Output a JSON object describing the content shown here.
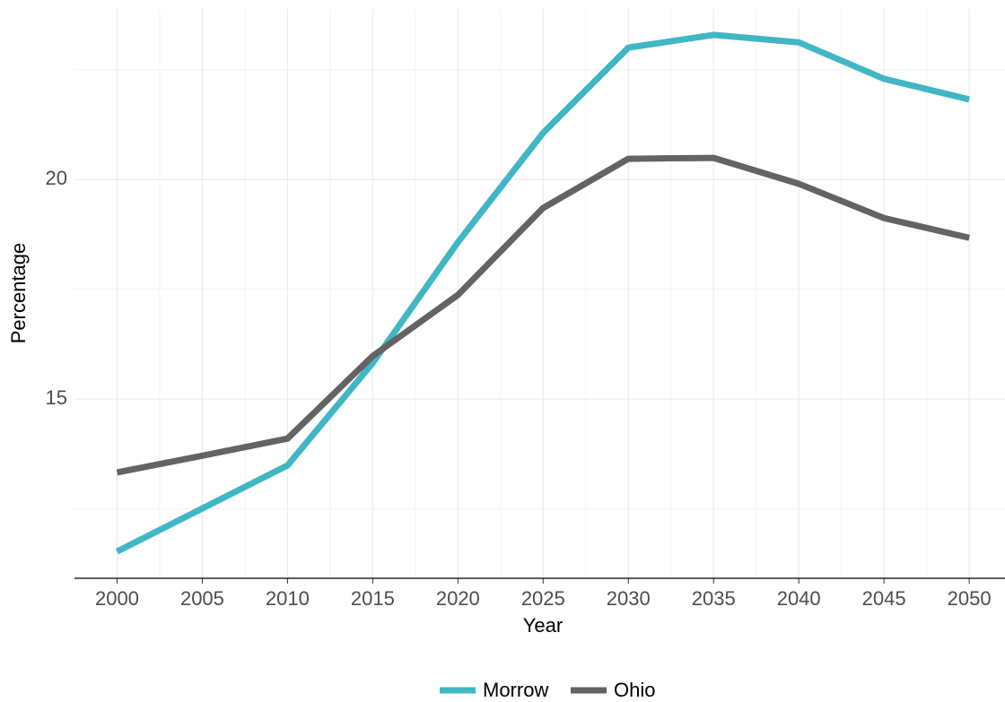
{
  "chart_data": {
    "type": "line",
    "x_label": "Year",
    "y_label": "Percentage",
    "x": [
      2000,
      2005,
      2010,
      2015,
      2020,
      2025,
      2030,
      2035,
      2040,
      2045,
      2050
    ],
    "series": [
      {
        "name": "Morrow",
        "color": "#41b6c4",
        "values": [
          11.53,
          12.51,
          13.49,
          15.82,
          18.57,
          21.06,
          23.0,
          23.29,
          23.12,
          22.29,
          21.82
        ]
      },
      {
        "name": "Ohio",
        "color": "#636363",
        "values": [
          13.33,
          13.71,
          14.1,
          15.98,
          17.37,
          19.35,
          20.47,
          20.49,
          19.9,
          19.12,
          18.67
        ]
      }
    ],
    "xlim": [
      1997.5,
      2052.1
    ],
    "ylim": [
      10.92,
      23.88
    ],
    "xticks": [
      2000,
      2005,
      2010,
      2015,
      2020,
      2025,
      2030,
      2035,
      2040,
      2045,
      2050
    ],
    "yticks": [
      15,
      20
    ],
    "grid": true,
    "legend": "bottom"
  }
}
